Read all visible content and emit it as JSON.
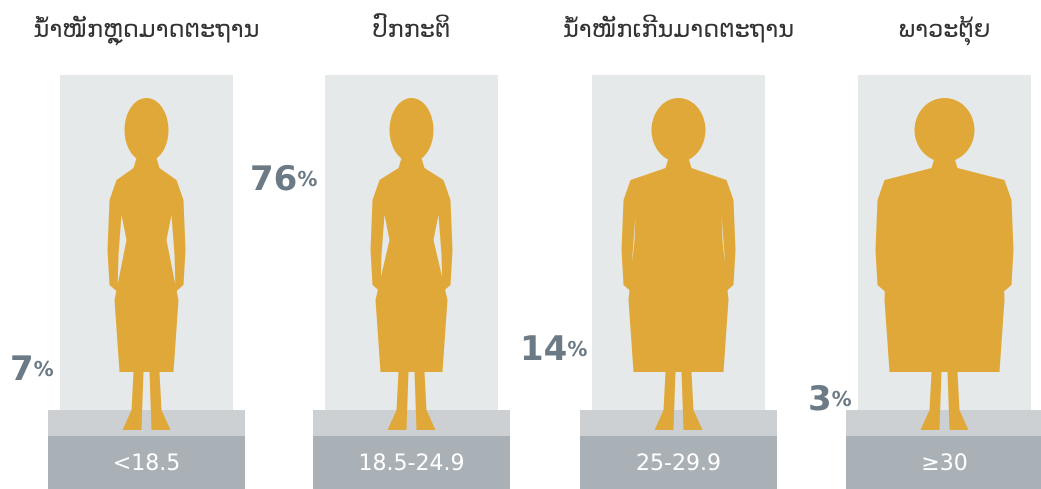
{
  "panels": [
    {
      "title": "ນ້ຳໜັກຫຼຸດມາດຕະຖານ",
      "percent": "7",
      "unit": "%",
      "bmi": "<18.5"
    },
    {
      "title": "ປົກກະຕິ",
      "percent": "76",
      "unit": "%",
      "bmi": "18.5-24.9"
    },
    {
      "title": "ນ້ຳໜັກເກີນມາດຕະຖານ",
      "percent": "14",
      "unit": "%",
      "bmi": "25-29.9"
    },
    {
      "title": "ພາວະຕຸ້ຍ",
      "percent": "3",
      "unit": "%",
      "bmi": "≥30"
    }
  ]
}
